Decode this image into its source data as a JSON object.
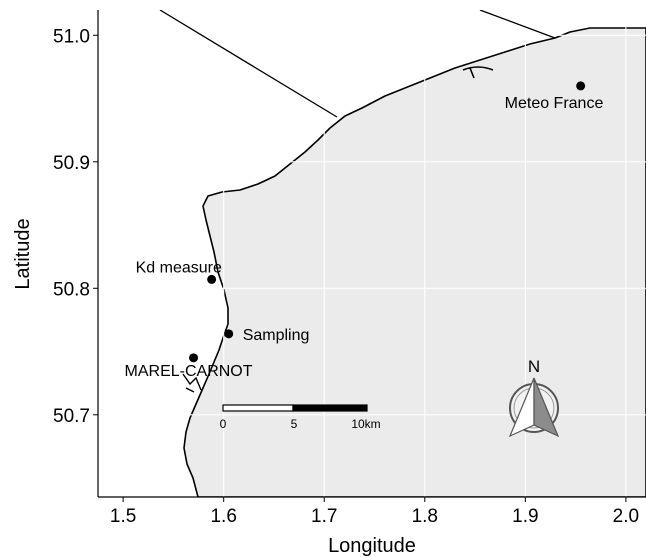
{
  "map": {
    "xlabel": "Longitude",
    "ylabel": "Latitude",
    "xlim": [
      1.475,
      2.02
    ],
    "ylim": [
      50.635,
      51.02
    ],
    "x_ticks": [
      "1.5",
      "1.6",
      "1.7",
      "1.8",
      "1.9",
      "2.0"
    ],
    "y_ticks": [
      "50.7",
      "50.8",
      "50.9",
      "51.0"
    ],
    "land_color": "#ebebeb",
    "sea_color": "#ffffff",
    "grid_color": "#ffffff",
    "sites": [
      {
        "name": "Meteo France",
        "lon": 1.955,
        "lat": 50.96
      },
      {
        "name": "Kd measure",
        "lon": 1.588,
        "lat": 50.807
      },
      {
        "name": "Sampling",
        "lon": 1.605,
        "lat": 50.764
      },
      {
        "name": "MAREL-CARNOT",
        "lon": 1.57,
        "lat": 50.745
      }
    ],
    "scale_bar": {
      "labels": [
        "0",
        "5",
        "10km"
      ]
    },
    "north_arrow": {
      "label": "N"
    }
  }
}
